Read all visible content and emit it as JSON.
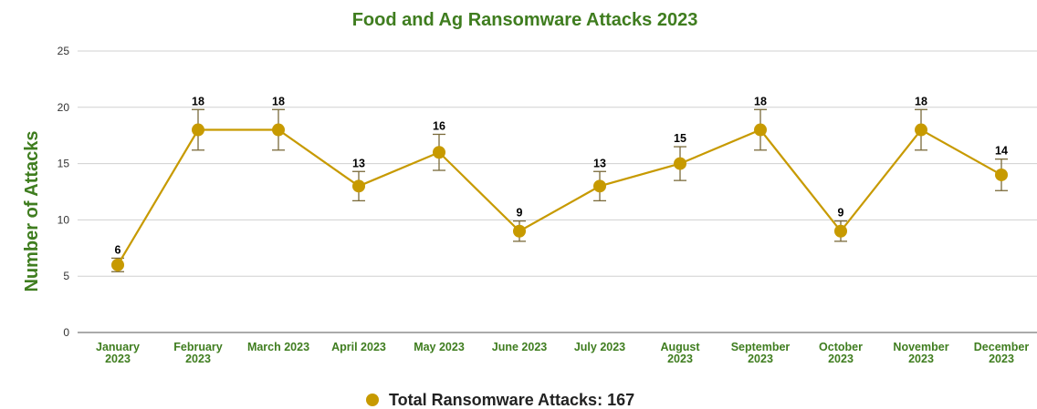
{
  "colors": {
    "title": "#3f7d1f",
    "axis_text": "#3f7d1f",
    "series": "#c79a00",
    "series_line": "#c79a00",
    "error_bar": "#7a6a3a",
    "grid": "#d0d0d0"
  },
  "chart_data": {
    "type": "line",
    "title": "Food and Ag Ransomware Attacks 2023",
    "xlabel": "",
    "ylabel": "Number of Attacks",
    "ylim": [
      0,
      25
    ],
    "yticks": [
      "0",
      "5",
      "10",
      "15",
      "20",
      "25"
    ],
    "grid": true,
    "legend_position": "bottom-center",
    "categories": [
      [
        "January",
        "2023"
      ],
      [
        "February",
        "2023"
      ],
      [
        "March 2023"
      ],
      [
        "April 2023"
      ],
      [
        "May 2023"
      ],
      [
        "June 2023"
      ],
      [
        "July 2023"
      ],
      [
        "August",
        "2023"
      ],
      [
        "September",
        "2023"
      ],
      [
        "October",
        "2023"
      ],
      [
        "November",
        "2023"
      ],
      [
        "December",
        "2023"
      ]
    ],
    "series": [
      {
        "name": "Total Ransomware Attacks: 167",
        "values": [
          6,
          18,
          18,
          13,
          16,
          9,
          13,
          15,
          18,
          9,
          18,
          14
        ],
        "error_low": [
          5.4,
          16.2,
          16.2,
          11.7,
          14.4,
          8.1,
          11.7,
          13.5,
          16.2,
          8.1,
          16.2,
          12.6
        ],
        "error_high": [
          6.6,
          19.8,
          19.8,
          14.3,
          17.6,
          9.9,
          14.3,
          16.5,
          19.8,
          9.9,
          19.8,
          15.4
        ]
      }
    ]
  }
}
